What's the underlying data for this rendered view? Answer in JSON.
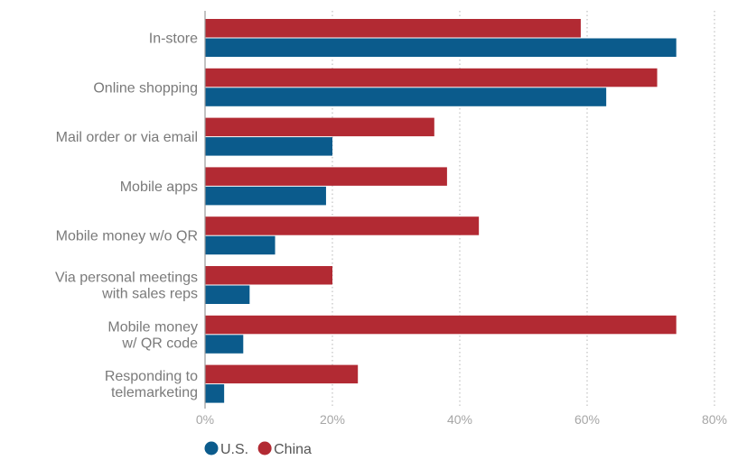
{
  "chart_data": {
    "type": "bar",
    "orientation": "horizontal",
    "categories": [
      [
        "In-store"
      ],
      [
        "Online shopping"
      ],
      [
        "Mail order or via email"
      ],
      [
        "Mobile apps"
      ],
      [
        "Mobile money w/o QR"
      ],
      [
        "Via personal meetings",
        "with sales reps"
      ],
      [
        "Mobile money",
        "w/ QR code"
      ],
      [
        "Responding to",
        "telemarketing"
      ]
    ],
    "series": [
      {
        "name": "China",
        "color": "#b22a33",
        "values": [
          59,
          71,
          36,
          38,
          43,
          20,
          74,
          24
        ]
      },
      {
        "name": "U.S.",
        "color": "#0b5b8c",
        "values": [
          74,
          63,
          20,
          19,
          11,
          7,
          6,
          3
        ]
      }
    ],
    "xlim": [
      0,
      80
    ],
    "xticks": [
      0,
      20,
      40,
      60,
      80
    ],
    "tick_labels": [
      "0%",
      "20%",
      "40%",
      "60%",
      "80%"
    ],
    "grid": "vertical dotted",
    "legend": {
      "position": "bottom-left",
      "items": [
        {
          "label": "U.S.",
          "color": "#0b5b8c"
        },
        {
          "label": "China",
          "color": "#b22a33"
        }
      ]
    }
  }
}
